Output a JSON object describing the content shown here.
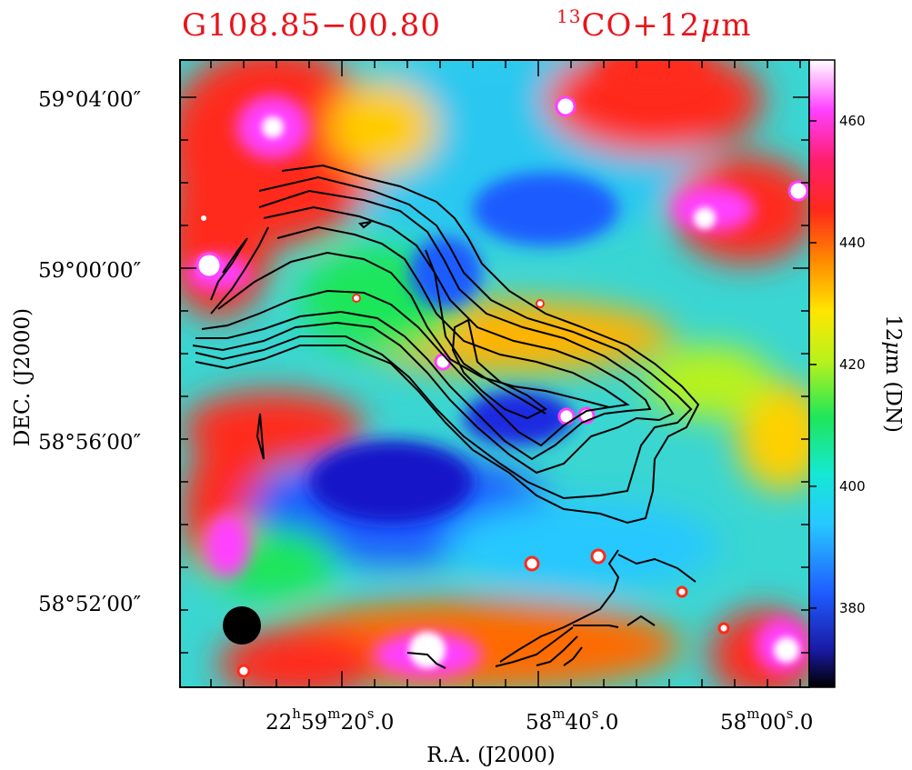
{
  "header": {
    "source_name": "G108.85−00.80",
    "tracer_sup": "13",
    "tracer_main": "CO+12",
    "tracer_mu": "μ",
    "tracer_unit": "m"
  },
  "colors": {
    "title": "#e8141b",
    "contour": "#000000",
    "beam": "#000000"
  },
  "chart_data": {
    "type": "heatmap",
    "title": "G108.85−00.80   13CO+12μm",
    "xlabel": "R.A.  (J2000)",
    "ylabel": "DEC.  (J2000)",
    "x_tick_labels": [
      {
        "h": "22",
        "hs": "h",
        "m": "59",
        "ms": "m",
        "s": "20",
        "ss": "s",
        "frac": ".0"
      },
      {
        "h": "",
        "hs": "",
        "m": "58",
        "ms": "m",
        "s": "40",
        "ss": "s",
        "frac": ".0"
      },
      {
        "h": "",
        "hs": "",
        "m": "58",
        "ms": "m",
        "s": "00",
        "ss": "s",
        "frac": ".0"
      }
    ],
    "y_tick_labels": [
      "59°04′00″",
      "59°00′00″",
      "58°56′00″",
      "58°52′00″"
    ],
    "colorbar": {
      "label_main": "12",
      "label_mu": "μ",
      "label_rest": "m  (DN)",
      "ticks": [
        380,
        400,
        420,
        440,
        460
      ],
      "range": [
        367,
        470
      ],
      "colormap": [
        "#000000",
        "#1a1aa6",
        "#1f5cff",
        "#27c8ff",
        "#15e8d4",
        "#1ee65a",
        "#b8f21c",
        "#ffe600",
        "#ff8a00",
        "#ff2a1a",
        "#ff1e6e",
        "#ff40ff",
        "#ffffff"
      ]
    },
    "contours": "13CO integrated intensity",
    "beam": "filled circle, lower-left"
  }
}
